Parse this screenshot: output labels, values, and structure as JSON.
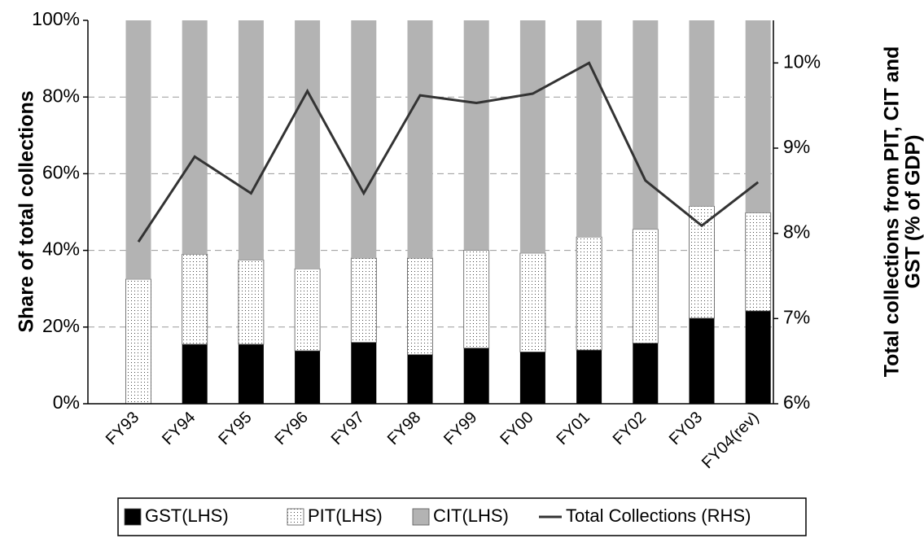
{
  "chart_data": {
    "type": "stacked-bar-line",
    "ylabel": "Share of total collections",
    "y2label": [
      "Total collections from PIT, CIT and",
      "GST (% of GDP)"
    ],
    "categories": [
      "FY93",
      "FY94",
      "FY95",
      "FY96",
      "FY97",
      "FY98",
      "FY99",
      "FY00",
      "FY01",
      "FY02",
      "FY03",
      "FY04(rev)"
    ],
    "series": [
      {
        "name": "GST(LHS)",
        "color": "#000000",
        "values": [
          0,
          15.5,
          15.5,
          13.8,
          16,
          12.8,
          14.5,
          13.5,
          14,
          15.8,
          22.3,
          24.2
        ]
      },
      {
        "name": "PIT(LHS)",
        "color": "#ffffff",
        "pattern": "dotted",
        "values": [
          32.5,
          23.5,
          22,
          21.4,
          22,
          25.2,
          25.5,
          25.8,
          29.5,
          29.7,
          29.2,
          25.6
        ]
      },
      {
        "name": "CIT(LHS)",
        "color": "#b3b3b3",
        "values": [
          67.5,
          61,
          62.5,
          64.8,
          62,
          62,
          60,
          60.7,
          56.5,
          54.5,
          48.5,
          50.2
        ]
      },
      {
        "name": "Total Collections (RHS)",
        "color": "#333333",
        "axis": "y2",
        "type": "line",
        "values": [
          7.9,
          8.9,
          8.47,
          9.67,
          8.47,
          9.62,
          9.53,
          9.64,
          10.0,
          8.62,
          8.09,
          8.6
        ]
      }
    ],
    "ylim": [
      0,
      100
    ],
    "yticks": [
      {
        "value": 0,
        "label": "0%"
      },
      {
        "value": 20,
        "label": "20%"
      },
      {
        "value": 40,
        "label": "40%"
      },
      {
        "value": 60,
        "label": "60%"
      },
      {
        "value": 80,
        "label": "80%"
      },
      {
        "value": 100,
        "label": "100%"
      }
    ],
    "y2lim": [
      6,
      10.5
    ],
    "y2ticks": [
      {
        "value": 6,
        "label": "6%"
      },
      {
        "value": 7,
        "label": "7%"
      },
      {
        "value": 8,
        "label": "8%"
      },
      {
        "value": 9,
        "label": "9%"
      },
      {
        "value": 10,
        "label": "10%"
      }
    ],
    "grid": true,
    "legend": "bottom"
  }
}
